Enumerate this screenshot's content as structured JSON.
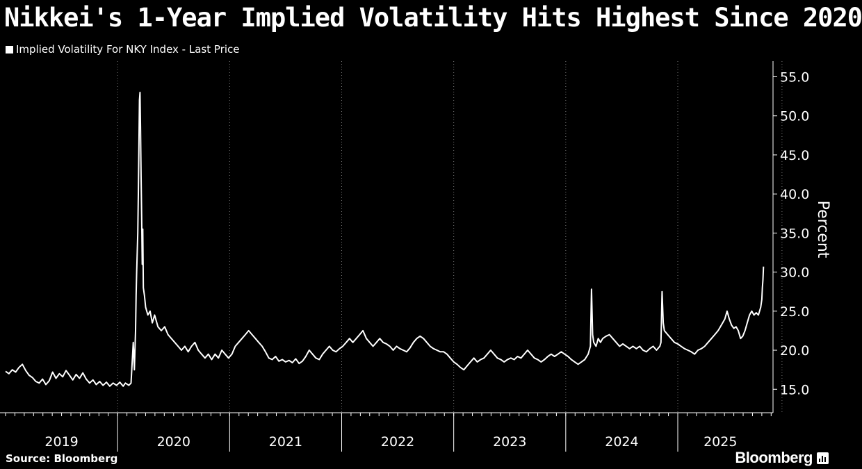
{
  "chart_data": {
    "type": "line",
    "title": "Nikkei's 1-Year Implied Volatility Hits Highest Since 2020",
    "ylabel": "Percent",
    "ylim": [
      12.0,
      57.0
    ],
    "yticks": [
      "15.0",
      "20.0",
      "25.0",
      "30.0",
      "35.0",
      "40.0",
      "45.0",
      "50.0",
      "55.0"
    ],
    "xlim": [
      2019.0,
      2025.85
    ],
    "x_tick_labels": [
      {
        "label": "2019",
        "x": 2019.0
      },
      {
        "label": "2020",
        "x": 2020.0
      },
      {
        "label": "2021",
        "x": 2021.0
      },
      {
        "label": "2022",
        "x": 2022.0
      },
      {
        "label": "2023",
        "x": 2023.0
      },
      {
        "label": "2024",
        "x": 2024.0
      },
      {
        "label": "2025",
        "x": 2025.0
      }
    ],
    "grid": "vertical-dotted",
    "legend_position": "top-left",
    "series": [
      {
        "name": "Implied Volatility For NKY Index - Last Price",
        "color": "#ffffff",
        "points": [
          [
            2019.0,
            17.3
          ],
          [
            2019.03,
            17.0
          ],
          [
            2019.06,
            17.5
          ],
          [
            2019.09,
            17.2
          ],
          [
            2019.12,
            17.8
          ],
          [
            2019.15,
            18.2
          ],
          [
            2019.18,
            17.4
          ],
          [
            2019.21,
            16.8
          ],
          [
            2019.24,
            16.5
          ],
          [
            2019.27,
            16.0
          ],
          [
            2019.3,
            15.8
          ],
          [
            2019.33,
            16.3
          ],
          [
            2019.36,
            15.6
          ],
          [
            2019.39,
            16.1
          ],
          [
            2019.42,
            17.2
          ],
          [
            2019.45,
            16.4
          ],
          [
            2019.48,
            17.0
          ],
          [
            2019.51,
            16.6
          ],
          [
            2019.54,
            17.4
          ],
          [
            2019.57,
            16.8
          ],
          [
            2019.6,
            16.2
          ],
          [
            2019.63,
            16.9
          ],
          [
            2019.66,
            16.4
          ],
          [
            2019.69,
            17.1
          ],
          [
            2019.72,
            16.3
          ],
          [
            2019.75,
            15.8
          ],
          [
            2019.78,
            16.2
          ],
          [
            2019.81,
            15.6
          ],
          [
            2019.84,
            16.0
          ],
          [
            2019.87,
            15.5
          ],
          [
            2019.9,
            15.9
          ],
          [
            2019.93,
            15.4
          ],
          [
            2019.96,
            15.8
          ],
          [
            2019.99,
            15.5
          ],
          [
            2020.02,
            15.9
          ],
          [
            2020.05,
            15.4
          ],
          [
            2020.07,
            15.8
          ],
          [
            2020.1,
            15.5
          ],
          [
            2020.12,
            15.8
          ],
          [
            2020.14,
            21.0
          ],
          [
            2020.15,
            17.5
          ],
          [
            2020.16,
            22.5
          ],
          [
            2020.165,
            27.0
          ],
          [
            2020.17,
            30.0
          ],
          [
            2020.18,
            35.0
          ],
          [
            2020.185,
            40.0
          ],
          [
            2020.19,
            46.0
          ],
          [
            2020.195,
            52.0
          ],
          [
            2020.2,
            53.0
          ],
          [
            2020.205,
            48.0
          ],
          [
            2020.21,
            42.0
          ],
          [
            2020.215,
            37.0
          ],
          [
            2020.22,
            31.0
          ],
          [
            2020.225,
            35.5
          ],
          [
            2020.23,
            28.0
          ],
          [
            2020.24,
            27.0
          ],
          [
            2020.25,
            25.5
          ],
          [
            2020.27,
            24.5
          ],
          [
            2020.29,
            25.0
          ],
          [
            2020.31,
            23.5
          ],
          [
            2020.33,
            24.5
          ],
          [
            2020.36,
            23.0
          ],
          [
            2020.39,
            22.5
          ],
          [
            2020.42,
            23.0
          ],
          [
            2020.45,
            22.0
          ],
          [
            2020.48,
            21.5
          ],
          [
            2020.51,
            21.0
          ],
          [
            2020.54,
            20.5
          ],
          [
            2020.57,
            20.0
          ],
          [
            2020.6,
            20.5
          ],
          [
            2020.63,
            19.8
          ],
          [
            2020.66,
            20.5
          ],
          [
            2020.69,
            21.0
          ],
          [
            2020.72,
            20.0
          ],
          [
            2020.75,
            19.5
          ],
          [
            2020.78,
            19.0
          ],
          [
            2020.81,
            19.5
          ],
          [
            2020.84,
            18.8
          ],
          [
            2020.87,
            19.5
          ],
          [
            2020.9,
            19.0
          ],
          [
            2020.93,
            20.0
          ],
          [
            2020.96,
            19.5
          ],
          [
            2020.99,
            19.0
          ],
          [
            2021.02,
            19.5
          ],
          [
            2021.05,
            20.5
          ],
          [
            2021.08,
            21.0
          ],
          [
            2021.11,
            21.5
          ],
          [
            2021.14,
            22.0
          ],
          [
            2021.17,
            22.5
          ],
          [
            2021.2,
            22.0
          ],
          [
            2021.23,
            21.5
          ],
          [
            2021.26,
            21.0
          ],
          [
            2021.29,
            20.5
          ],
          [
            2021.32,
            19.8
          ],
          [
            2021.35,
            19.0
          ],
          [
            2021.38,
            18.8
          ],
          [
            2021.41,
            19.2
          ],
          [
            2021.44,
            18.6
          ],
          [
            2021.47,
            18.8
          ],
          [
            2021.5,
            18.5
          ],
          [
            2021.53,
            18.7
          ],
          [
            2021.56,
            18.4
          ],
          [
            2021.59,
            18.9
          ],
          [
            2021.62,
            18.3
          ],
          [
            2021.65,
            18.6
          ],
          [
            2021.68,
            19.2
          ],
          [
            2021.71,
            20.0
          ],
          [
            2021.74,
            19.5
          ],
          [
            2021.77,
            19.0
          ],
          [
            2021.8,
            18.8
          ],
          [
            2021.83,
            19.5
          ],
          [
            2021.86,
            20.0
          ],
          [
            2021.89,
            20.5
          ],
          [
            2021.92,
            20.0
          ],
          [
            2021.95,
            19.8
          ],
          [
            2021.98,
            20.2
          ],
          [
            2022.01,
            20.5
          ],
          [
            2022.04,
            21.0
          ],
          [
            2022.07,
            21.5
          ],
          [
            2022.1,
            21.0
          ],
          [
            2022.13,
            21.5
          ],
          [
            2022.16,
            22.0
          ],
          [
            2022.19,
            22.5
          ],
          [
            2022.22,
            21.5
          ],
          [
            2022.25,
            21.0
          ],
          [
            2022.28,
            20.5
          ],
          [
            2022.31,
            21.0
          ],
          [
            2022.34,
            21.5
          ],
          [
            2022.37,
            21.0
          ],
          [
            2022.4,
            20.8
          ],
          [
            2022.43,
            20.5
          ],
          [
            2022.46,
            20.0
          ],
          [
            2022.49,
            20.5
          ],
          [
            2022.52,
            20.2
          ],
          [
            2022.55,
            20.0
          ],
          [
            2022.58,
            19.8
          ],
          [
            2022.61,
            20.3
          ],
          [
            2022.64,
            21.0
          ],
          [
            2022.67,
            21.5
          ],
          [
            2022.7,
            21.8
          ],
          [
            2022.73,
            21.5
          ],
          [
            2022.76,
            21.0
          ],
          [
            2022.79,
            20.5
          ],
          [
            2022.82,
            20.2
          ],
          [
            2022.85,
            20.0
          ],
          [
            2022.88,
            19.8
          ],
          [
            2022.91,
            19.8
          ],
          [
            2022.94,
            19.5
          ],
          [
            2022.97,
            19.0
          ],
          [
            2023.0,
            18.5
          ],
          [
            2023.03,
            18.2
          ],
          [
            2023.06,
            17.8
          ],
          [
            2023.09,
            17.5
          ],
          [
            2023.12,
            18.0
          ],
          [
            2023.15,
            18.5
          ],
          [
            2023.18,
            19.0
          ],
          [
            2023.21,
            18.5
          ],
          [
            2023.24,
            18.8
          ],
          [
            2023.27,
            19.0
          ],
          [
            2023.3,
            19.5
          ],
          [
            2023.33,
            20.0
          ],
          [
            2023.36,
            19.5
          ],
          [
            2023.39,
            19.0
          ],
          [
            2023.42,
            18.8
          ],
          [
            2023.45,
            18.5
          ],
          [
            2023.48,
            18.8
          ],
          [
            2023.51,
            19.0
          ],
          [
            2023.54,
            18.8
          ],
          [
            2023.57,
            19.2
          ],
          [
            2023.6,
            19.0
          ],
          [
            2023.63,
            19.5
          ],
          [
            2023.66,
            20.0
          ],
          [
            2023.69,
            19.5
          ],
          [
            2023.72,
            19.0
          ],
          [
            2023.75,
            18.8
          ],
          [
            2023.78,
            18.5
          ],
          [
            2023.81,
            18.8
          ],
          [
            2023.84,
            19.2
          ],
          [
            2023.87,
            19.5
          ],
          [
            2023.9,
            19.2
          ],
          [
            2023.93,
            19.5
          ],
          [
            2023.96,
            19.8
          ],
          [
            2023.99,
            19.5
          ],
          [
            2024.02,
            19.2
          ],
          [
            2024.05,
            18.8
          ],
          [
            2024.08,
            18.5
          ],
          [
            2024.11,
            18.2
          ],
          [
            2024.14,
            18.5
          ],
          [
            2024.17,
            18.8
          ],
          [
            2024.2,
            19.5
          ],
          [
            2024.22,
            20.5
          ],
          [
            2024.23,
            27.8
          ],
          [
            2024.24,
            22.0
          ],
          [
            2024.25,
            21.0
          ],
          [
            2024.27,
            20.5
          ],
          [
            2024.29,
            21.5
          ],
          [
            2024.31,
            21.0
          ],
          [
            2024.33,
            21.5
          ],
          [
            2024.36,
            21.8
          ],
          [
            2024.39,
            22.0
          ],
          [
            2024.42,
            21.5
          ],
          [
            2024.45,
            21.0
          ],
          [
            2024.48,
            20.5
          ],
          [
            2024.51,
            20.8
          ],
          [
            2024.54,
            20.5
          ],
          [
            2024.57,
            20.2
          ],
          [
            2024.6,
            20.5
          ],
          [
            2024.63,
            20.2
          ],
          [
            2024.66,
            20.5
          ],
          [
            2024.69,
            20.0
          ],
          [
            2024.72,
            19.8
          ],
          [
            2024.75,
            20.2
          ],
          [
            2024.78,
            20.5
          ],
          [
            2024.81,
            20.0
          ],
          [
            2024.84,
            20.5
          ],
          [
            2024.85,
            21.0
          ],
          [
            2024.86,
            27.5
          ],
          [
            2024.87,
            23.5
          ],
          [
            2024.88,
            22.5
          ],
          [
            2024.91,
            22.0
          ],
          [
            2024.94,
            21.5
          ],
          [
            2024.97,
            21.0
          ],
          [
            2025.0,
            20.8
          ],
          [
            2025.03,
            20.5
          ],
          [
            2025.06,
            20.2
          ],
          [
            2025.09,
            20.0
          ],
          [
            2025.12,
            19.8
          ],
          [
            2025.15,
            19.5
          ],
          [
            2025.18,
            20.0
          ],
          [
            2025.21,
            20.2
          ],
          [
            2025.24,
            20.5
          ],
          [
            2025.27,
            21.0
          ],
          [
            2025.3,
            21.5
          ],
          [
            2025.33,
            22.0
          ],
          [
            2025.36,
            22.5
          ],
          [
            2025.38,
            23.0
          ],
          [
            2025.4,
            23.5
          ],
          [
            2025.42,
            24.0
          ],
          [
            2025.44,
            25.0
          ],
          [
            2025.46,
            24.0
          ],
          [
            2025.48,
            23.2
          ],
          [
            2025.5,
            22.8
          ],
          [
            2025.52,
            23.0
          ],
          [
            2025.54,
            22.5
          ],
          [
            2025.56,
            21.5
          ],
          [
            2025.58,
            21.8
          ],
          [
            2025.6,
            22.5
          ],
          [
            2025.62,
            23.5
          ],
          [
            2025.64,
            24.5
          ],
          [
            2025.66,
            25.0
          ],
          [
            2025.68,
            24.5
          ],
          [
            2025.7,
            24.8
          ],
          [
            2025.72,
            24.5
          ],
          [
            2025.74,
            25.5
          ],
          [
            2025.75,
            26.5
          ],
          [
            2025.755,
            28.0
          ],
          [
            2025.76,
            29.0
          ],
          [
            2025.765,
            30.7
          ]
        ]
      }
    ]
  },
  "footer": {
    "source": "Source: Bloomberg",
    "brand": "Bloomberg"
  },
  "icons": {
    "brand_icon": "bar-chart-icon"
  }
}
